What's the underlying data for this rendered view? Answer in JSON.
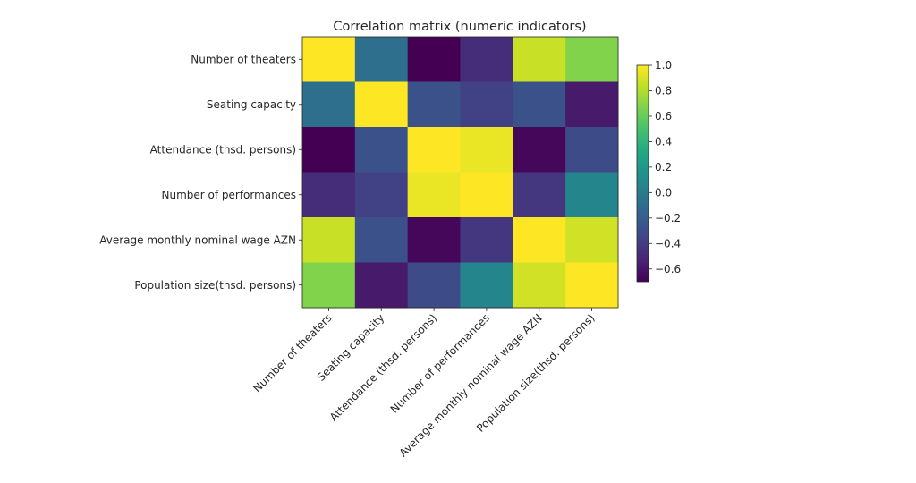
{
  "chart_data": {
    "type": "heatmap",
    "title": "Correlation matrix (numeric indicators)",
    "xlabel": "",
    "ylabel": "",
    "colormap": "viridis",
    "row_labels": [
      "Number of theaters",
      "Seating capacity",
      "Attendance (thsd. persons)",
      "Number of performances",
      "Average monthly nominal wage AZN",
      "Population size(thsd. persons)"
    ],
    "col_labels": [
      "Number of theaters",
      "Seating capacity",
      "Attendance (thsd. persons)",
      "Number of performances",
      "Average monthly nominal wage AZN",
      "Population size(thsd. persons)"
    ],
    "values": [
      [
        1.0,
        -0.08,
        -0.7,
        -0.48,
        0.86,
        0.68
      ],
      [
        -0.08,
        1.0,
        -0.28,
        -0.37,
        -0.28,
        -0.58
      ],
      [
        -0.7,
        -0.28,
        1.0,
        0.95,
        -0.67,
        -0.31
      ],
      [
        -0.48,
        -0.37,
        0.95,
        1.0,
        -0.43,
        0.07
      ],
      [
        0.86,
        -0.28,
        -0.67,
        -0.43,
        1.0,
        0.88
      ],
      [
        0.68,
        -0.58,
        -0.31,
        0.07,
        0.88,
        1.0
      ]
    ],
    "colorbar": {
      "range": [
        -0.7,
        1.0
      ],
      "ticks": [
        1.0,
        0.8,
        0.6,
        0.4,
        0.2,
        0.0,
        -0.2,
        -0.4,
        -0.6
      ],
      "tick_labels": [
        "1.0",
        "0.8",
        "0.6",
        "0.4",
        "0.2",
        "0.0",
        "−0.2",
        "−0.4",
        "−0.6"
      ],
      "placement": "right"
    }
  }
}
